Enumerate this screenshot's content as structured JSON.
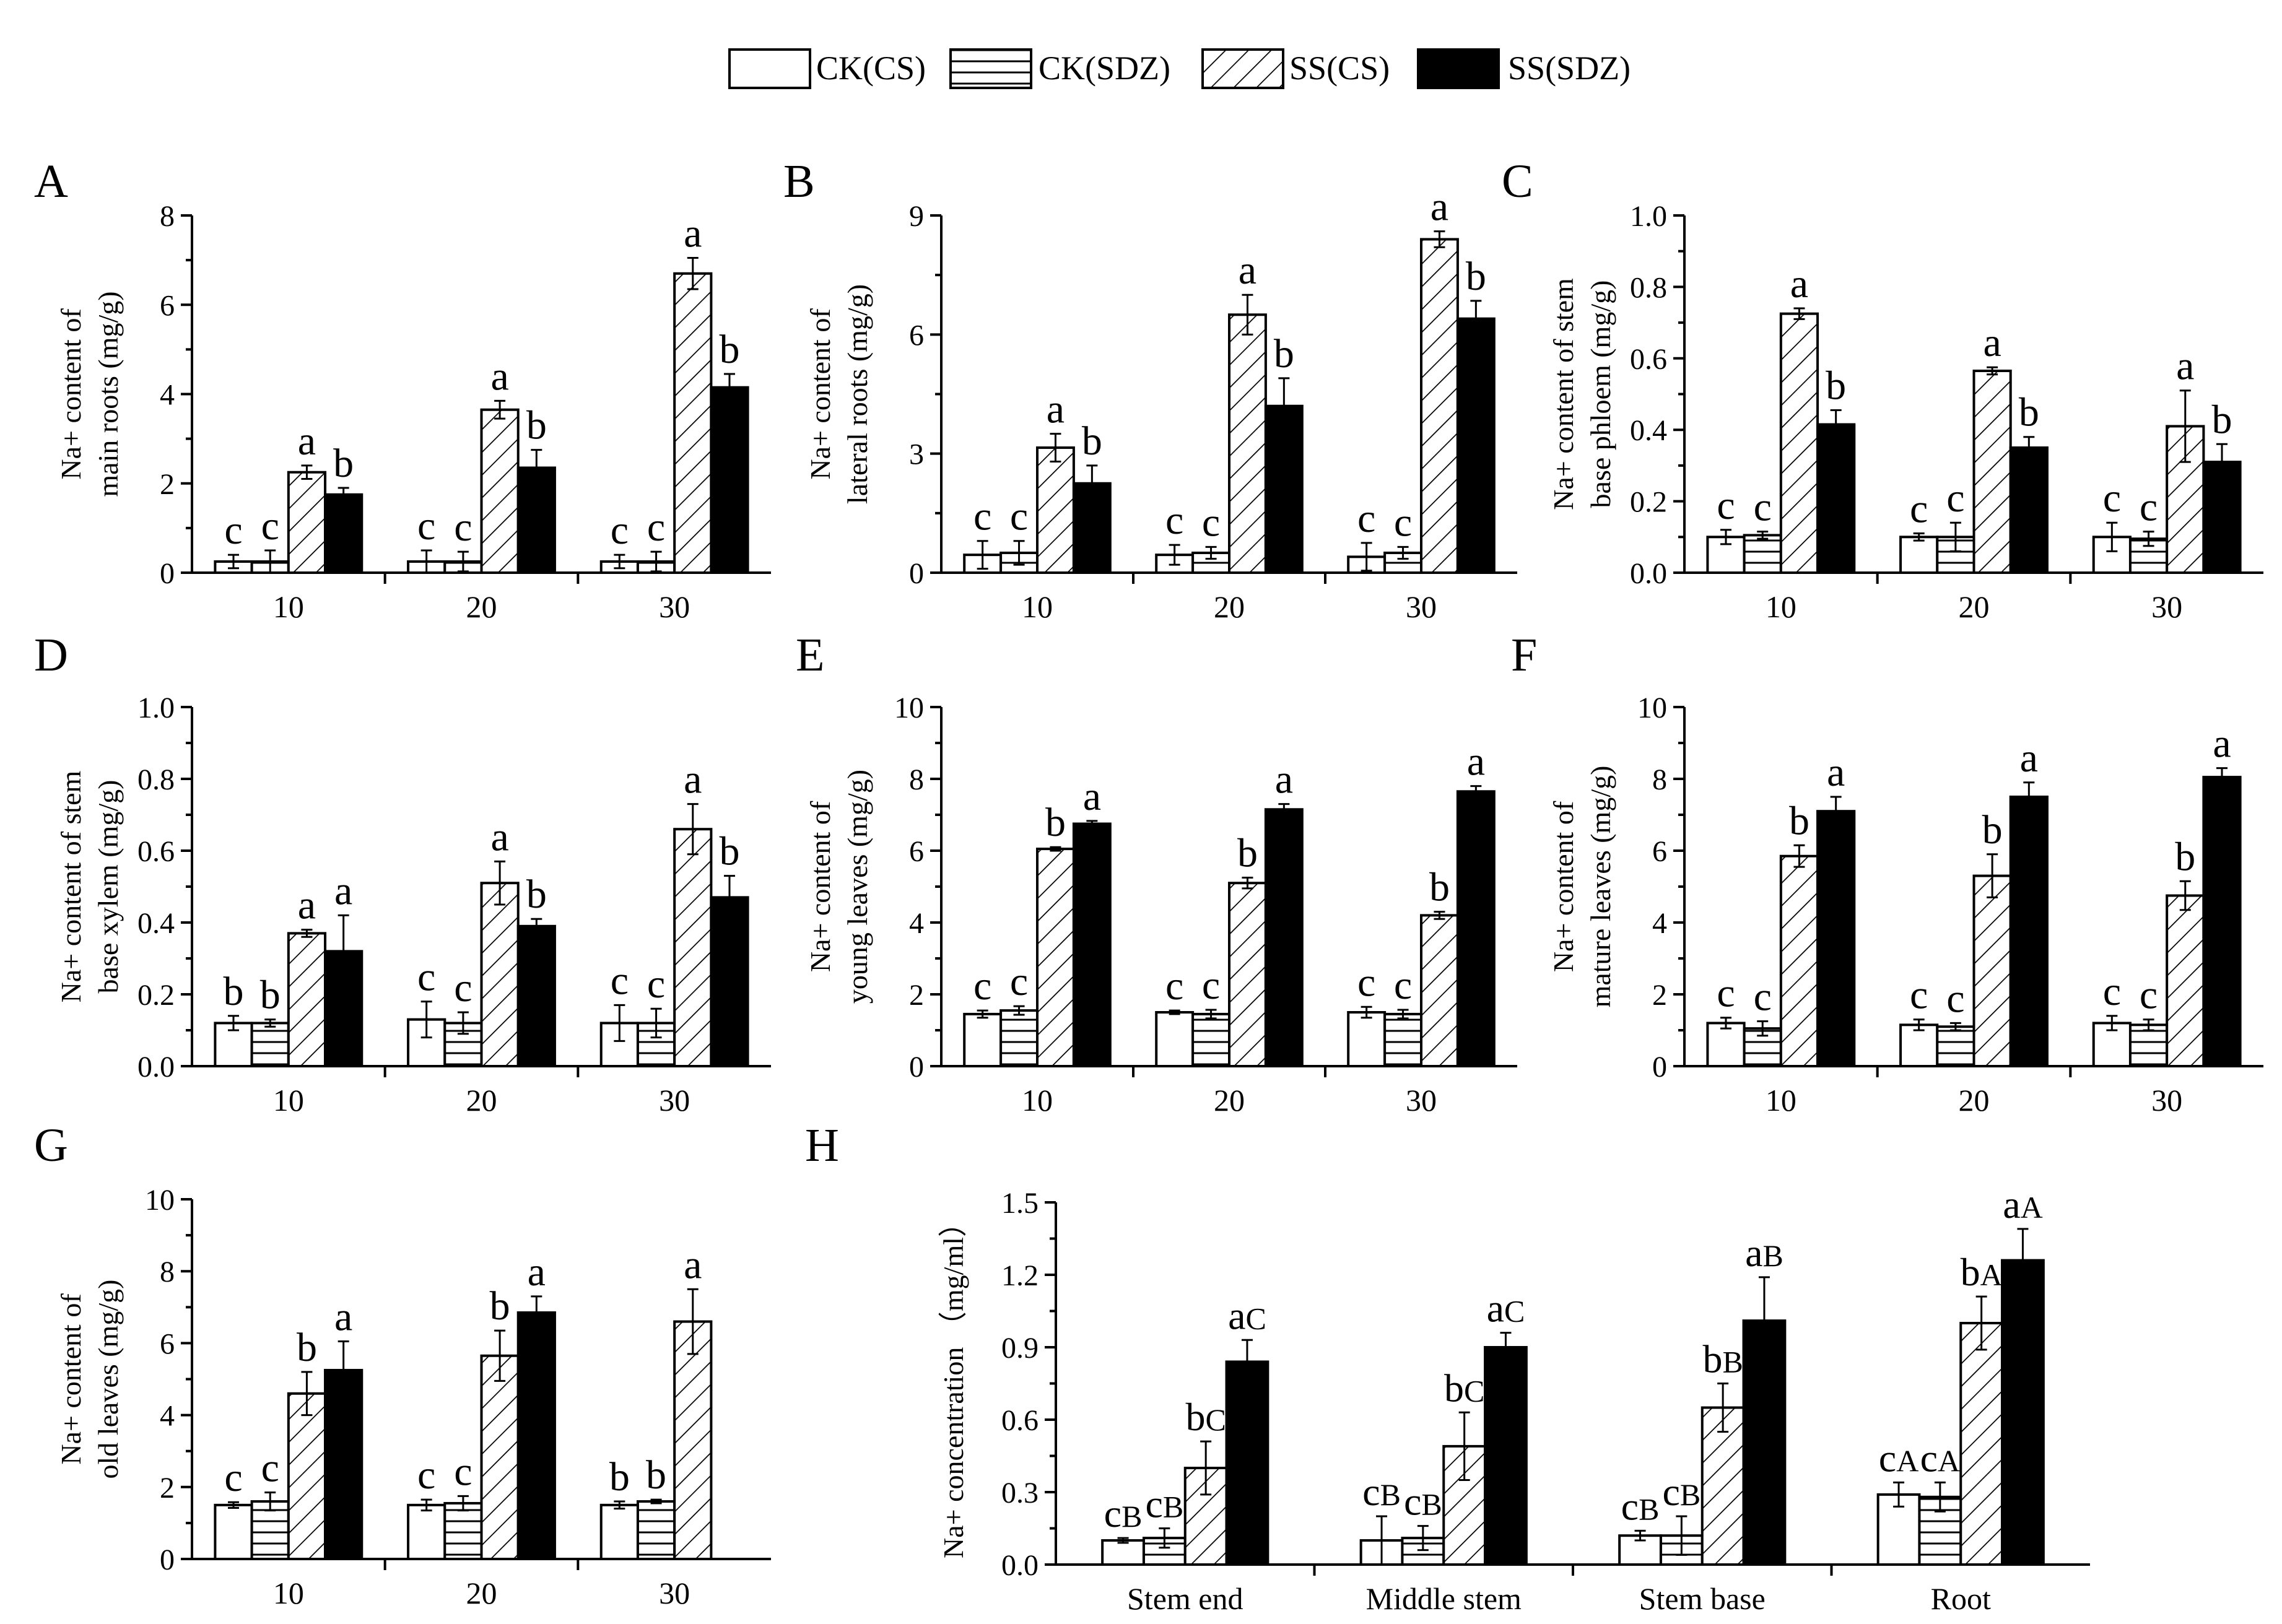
{
  "legend": {
    "entries": [
      {
        "label": "CK(CS)",
        "pattern": "empty"
      },
      {
        "label": "CK(SDZ)",
        "pattern": "horizontal"
      },
      {
        "label": "SS(CS)",
        "pattern": "diagonal"
      },
      {
        "label": "SS(SDZ)",
        "pattern": "solid"
      }
    ]
  },
  "colors": {
    "ink": "#000000",
    "paper": "#ffffff"
  },
  "chart_data": [
    {
      "panel": "A",
      "type": "bar",
      "ylabel": [
        "Na+ content of",
        "main roots (mg/g)"
      ],
      "categories": [
        "10",
        "20",
        "30"
      ],
      "ylim": [
        0,
        8
      ],
      "yticks": [
        0,
        2,
        4,
        6,
        8
      ],
      "tick_labels": [
        "0",
        "2",
        "4",
        "6",
        "8"
      ],
      "series": [
        {
          "name": "CK(CS)",
          "values": [
            0.25,
            0.25,
            0.25
          ],
          "errors": [
            0.15,
            0.25,
            0.15
          ],
          "letters": [
            "c",
            "c",
            "c"
          ]
        },
        {
          "name": "CK(SDZ)",
          "values": [
            0.25,
            0.25,
            0.25
          ],
          "errors": [
            0.25,
            0.22,
            0.22
          ],
          "letters": [
            "c",
            "c",
            "c"
          ]
        },
        {
          "name": "SS(CS)",
          "values": [
            2.25,
            3.65,
            6.7
          ],
          "errors": [
            0.15,
            0.2,
            0.35
          ],
          "letters": [
            "a",
            "a",
            "a"
          ]
        },
        {
          "name": "SS(SDZ)",
          "values": [
            1.75,
            2.35,
            4.15
          ],
          "errors": [
            0.15,
            0.4,
            0.3
          ],
          "letters": [
            "b",
            "b",
            "b"
          ]
        }
      ]
    },
    {
      "panel": "B",
      "type": "bar",
      "ylabel": [
        "Na+ content of",
        "lateral roots (mg/g)"
      ],
      "categories": [
        "10",
        "20",
        "30"
      ],
      "ylim": [
        0,
        9
      ],
      "yticks": [
        0,
        3,
        6,
        9
      ],
      "tick_labels": [
        "0",
        "3",
        "6",
        "9"
      ],
      "series": [
        {
          "name": "CK(CS)",
          "values": [
            0.45,
            0.45,
            0.4
          ],
          "errors": [
            0.35,
            0.25,
            0.35
          ],
          "letters": [
            "c",
            "c",
            "c"
          ]
        },
        {
          "name": "CK(SDZ)",
          "values": [
            0.5,
            0.5,
            0.5
          ],
          "errors": [
            0.3,
            0.15,
            0.15
          ],
          "letters": [
            "c",
            "c",
            "c"
          ]
        },
        {
          "name": "SS(CS)",
          "values": [
            3.15,
            6.5,
            8.4
          ],
          "errors": [
            0.35,
            0.5,
            0.2
          ],
          "letters": [
            "a",
            "a",
            "a"
          ]
        },
        {
          "name": "SS(SDZ)",
          "values": [
            2.25,
            4.2,
            6.4
          ],
          "errors": [
            0.45,
            0.7,
            0.45
          ],
          "letters": [
            "b",
            "b",
            "b"
          ]
        }
      ]
    },
    {
      "panel": "C",
      "type": "bar",
      "ylabel": [
        "Na+ content of stem",
        "base phloem (mg/g)"
      ],
      "categories": [
        "10",
        "20",
        "30"
      ],
      "ylim": [
        0,
        1.0
      ],
      "yticks": [
        0,
        0.2,
        0.4,
        0.6,
        0.8,
        1.0
      ],
      "tick_labels": [
        "0.0",
        "0.2",
        "0.4",
        "0.6",
        "0.8",
        "1.0"
      ],
      "series": [
        {
          "name": "CK(CS)",
          "values": [
            0.1,
            0.1,
            0.1
          ],
          "errors": [
            0.02,
            0.01,
            0.04
          ],
          "letters": [
            "c",
            "c",
            "c"
          ]
        },
        {
          "name": "CK(SDZ)",
          "values": [
            0.105,
            0.1,
            0.095
          ],
          "errors": [
            0.01,
            0.04,
            0.02
          ],
          "letters": [
            "c",
            "c",
            "c"
          ]
        },
        {
          "name": "SS(CS)",
          "values": [
            0.725,
            0.565,
            0.41
          ],
          "errors": [
            0.015,
            0.01,
            0.1
          ],
          "letters": [
            "a",
            "a",
            "a"
          ]
        },
        {
          "name": "SS(SDZ)",
          "values": [
            0.415,
            0.35,
            0.31
          ],
          "errors": [
            0.04,
            0.03,
            0.05
          ],
          "letters": [
            "b",
            "b",
            "b"
          ]
        }
      ]
    },
    {
      "panel": "D",
      "type": "bar",
      "ylabel": [
        "Na+ content of stem",
        "base xylem (mg/g)"
      ],
      "categories": [
        "10",
        "20",
        "30"
      ],
      "ylim": [
        0,
        1.0
      ],
      "yticks": [
        0,
        0.2,
        0.4,
        0.6,
        0.8,
        1.0
      ],
      "tick_labels": [
        "0.0",
        "0.2",
        "0.4",
        "0.6",
        "0.8",
        "1.0"
      ],
      "series": [
        {
          "name": "CK(CS)",
          "values": [
            0.12,
            0.13,
            0.12
          ],
          "errors": [
            0.02,
            0.05,
            0.05
          ],
          "letters": [
            "b",
            "c",
            "c"
          ]
        },
        {
          "name": "CK(SDZ)",
          "values": [
            0.12,
            0.12,
            0.12
          ],
          "errors": [
            0.01,
            0.03,
            0.04
          ],
          "letters": [
            "b",
            "c",
            "c"
          ]
        },
        {
          "name": "SS(CS)",
          "values": [
            0.37,
            0.51,
            0.66
          ],
          "errors": [
            0.01,
            0.06,
            0.07
          ],
          "letters": [
            "a",
            "a",
            "a"
          ]
        },
        {
          "name": "SS(SDZ)",
          "values": [
            0.32,
            0.39,
            0.47
          ],
          "errors": [
            0.1,
            0.02,
            0.06
          ],
          "letters": [
            "a",
            "b",
            "b"
          ]
        }
      ]
    },
    {
      "panel": "E",
      "type": "bar",
      "ylabel": [
        "Na+ content of",
        "young leaves (mg/g)"
      ],
      "categories": [
        "10",
        "20",
        "30"
      ],
      "ylim": [
        0,
        10
      ],
      "yticks": [
        0,
        2,
        4,
        6,
        8,
        10
      ],
      "tick_labels": [
        "0",
        "2",
        "4",
        "6",
        "8",
        "10"
      ],
      "series": [
        {
          "name": "CK(CS)",
          "values": [
            1.45,
            1.5,
            1.5
          ],
          "errors": [
            0.1,
            0.05,
            0.15
          ],
          "letters": [
            "c",
            "c",
            "c"
          ]
        },
        {
          "name": "CK(SDZ)",
          "values": [
            1.55,
            1.45,
            1.45
          ],
          "errors": [
            0.12,
            0.12,
            0.12
          ],
          "letters": [
            "c",
            "c",
            "c"
          ]
        },
        {
          "name": "SS(CS)",
          "values": [
            6.05,
            5.1,
            4.2
          ],
          "errors": [
            0.05,
            0.15,
            0.1
          ],
          "letters": [
            "b",
            "b",
            "b"
          ]
        },
        {
          "name": "SS(SDZ)",
          "values": [
            6.75,
            7.15,
            7.65
          ],
          "errors": [
            0.08,
            0.15,
            0.15
          ],
          "letters": [
            "a",
            "a",
            "a"
          ]
        }
      ]
    },
    {
      "panel": "F",
      "type": "bar",
      "ylabel": [
        "Na+ content of",
        "mature leaves (mg/g)"
      ],
      "categories": [
        "10",
        "20",
        "30"
      ],
      "ylim": [
        0,
        10
      ],
      "yticks": [
        0,
        2,
        4,
        6,
        8,
        10
      ],
      "tick_labels": [
        "0",
        "2",
        "4",
        "6",
        "8",
        "10"
      ],
      "series": [
        {
          "name": "CK(CS)",
          "values": [
            1.2,
            1.15,
            1.2
          ],
          "errors": [
            0.15,
            0.15,
            0.2
          ],
          "letters": [
            "c",
            "c",
            "c"
          ]
        },
        {
          "name": "CK(SDZ)",
          "values": [
            1.05,
            1.1,
            1.15
          ],
          "errors": [
            0.2,
            0.1,
            0.15
          ],
          "letters": [
            "c",
            "c",
            "c"
          ]
        },
        {
          "name": "SS(CS)",
          "values": [
            5.85,
            5.3,
            4.75
          ],
          "errors": [
            0.3,
            0.6,
            0.4
          ],
          "letters": [
            "b",
            "b",
            "b"
          ]
        },
        {
          "name": "SS(SDZ)",
          "values": [
            7.1,
            7.5,
            8.05
          ],
          "errors": [
            0.4,
            0.4,
            0.25
          ],
          "letters": [
            "a",
            "a",
            "a"
          ]
        }
      ]
    },
    {
      "panel": "G",
      "type": "bar",
      "ylabel": [
        "Na+ content of",
        "old leaves (mg/g)"
      ],
      "categories": [
        "10",
        "20",
        "30"
      ],
      "ylim": [
        0,
        10
      ],
      "yticks": [
        0,
        2,
        4,
        6,
        8,
        10
      ],
      "tick_labels": [
        "0",
        "2",
        "4",
        "6",
        "8",
        "10"
      ],
      "series": [
        {
          "name": "CK(CS)",
          "values": [
            1.5,
            1.5,
            1.5
          ],
          "errors": [
            0.08,
            0.15,
            0.1
          ],
          "letters": [
            "c",
            "c",
            "b"
          ]
        },
        {
          "name": "CK(SDZ)",
          "values": [
            1.6,
            1.55,
            1.6
          ],
          "errors": [
            0.25,
            0.2,
            0.05
          ],
          "letters": [
            "c",
            "c",
            "b"
          ]
        },
        {
          "name": "SS(CS)",
          "values": [
            4.6,
            5.65,
            6.6
          ],
          "errors": [
            0.6,
            0.7,
            0.9
          ],
          "letters": [
            "b",
            "b",
            "a"
          ]
        },
        {
          "name": "SS(SDZ)",
          "values": [
            5.25,
            6.85,
            null
          ],
          "errors": [
            0.8,
            0.45,
            null
          ],
          "letters": [
            "a",
            "a",
            null
          ]
        }
      ]
    },
    {
      "panel": "H",
      "type": "bar",
      "ylabel": [
        "Na+ concentration （mg/ml）"
      ],
      "categories": [
        "Stem end",
        "Middle stem",
        "Stem base",
        "Root"
      ],
      "ylim": [
        0,
        1.5
      ],
      "yticks": [
        0,
        0.3,
        0.6,
        0.9,
        1.2,
        1.5
      ],
      "tick_labels": [
        "0.0",
        "0.3",
        "0.6",
        "0.9",
        "1.2",
        "1.5"
      ],
      "series": [
        {
          "name": "CK(CS)",
          "values": [
            0.1,
            0.1,
            0.12,
            0.29
          ],
          "errors": [
            0.01,
            0.1,
            0.02,
            0.05
          ],
          "letters": [
            "c",
            "c",
            "c",
            "c"
          ],
          "group_letters": [
            "B",
            "B",
            "B",
            "A"
          ]
        },
        {
          "name": "CK(SDZ)",
          "values": [
            0.11,
            0.11,
            0.12,
            0.28
          ],
          "errors": [
            0.04,
            0.05,
            0.08,
            0.06
          ],
          "letters": [
            "c",
            "c",
            "c",
            "c"
          ],
          "group_letters": [
            "B",
            "B",
            "B",
            "A"
          ]
        },
        {
          "name": "SS(CS)",
          "values": [
            0.4,
            0.49,
            0.65,
            1.0
          ],
          "errors": [
            0.11,
            0.14,
            0.1,
            0.11
          ],
          "letters": [
            "b",
            "b",
            "b",
            "b"
          ],
          "group_letters": [
            "C",
            "C",
            "B",
            "A"
          ]
        },
        {
          "name": "SS(SDZ)",
          "values": [
            0.84,
            0.9,
            1.01,
            1.26
          ],
          "errors": [
            0.09,
            0.06,
            0.18,
            0.13
          ],
          "letters": [
            "a",
            "a",
            "a",
            "a"
          ],
          "group_letters": [
            "C",
            "C",
            "B",
            "A"
          ]
        }
      ]
    }
  ]
}
